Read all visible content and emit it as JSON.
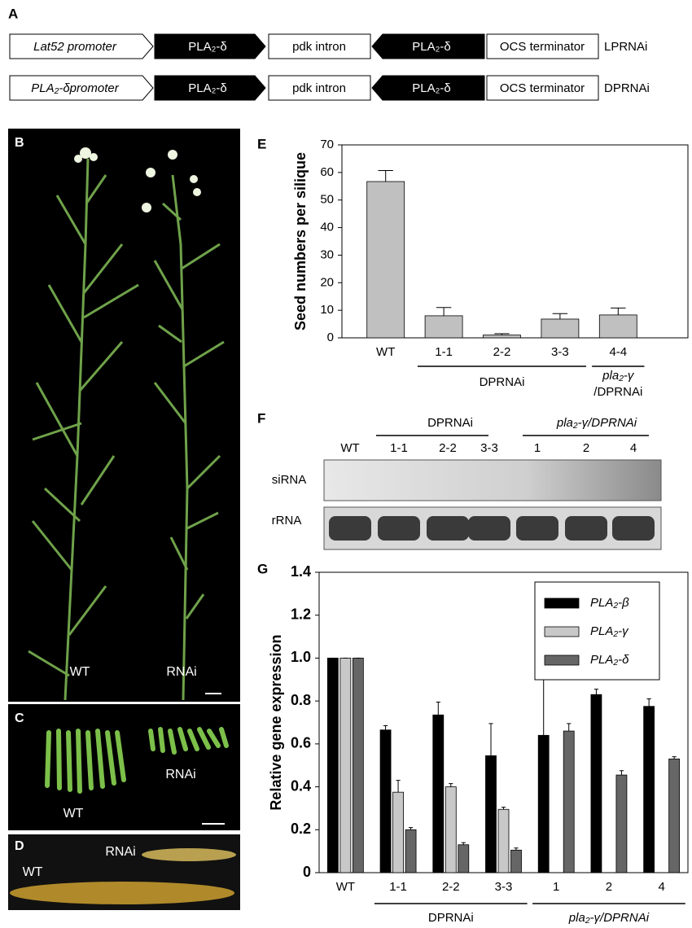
{
  "panels": {
    "A": {
      "label": "A",
      "rows": [
        [
          "Lat52 promoter",
          "PLA₂-δ",
          "pdk intron",
          "PLA₂-δ",
          "OCS  terminator",
          "LPRNAi"
        ],
        [
          "PLA₂-δpromoter",
          "PLA₂-δ",
          "pdk intron",
          "PLA₂-δ",
          "OCS  terminator",
          "DPRNAi"
        ]
      ]
    },
    "B": {
      "label": "B",
      "texts": [
        "WT",
        "RNAi"
      ]
    },
    "C": {
      "label": "C",
      "texts": [
        "WT",
        "RNAi"
      ]
    },
    "D": {
      "label": "D",
      "texts": [
        "WT",
        "RNAi"
      ]
    },
    "F": {
      "label": "F",
      "groups": [
        "DPRNAi",
        "pla₂-γ/DPRNAi"
      ],
      "lanes": [
        "WT",
        "1-1",
        "2-2",
        "3-3",
        "1",
        "2",
        "4"
      ],
      "rows": [
        "siRNA",
        "rRNA"
      ]
    }
  },
  "chart_data": [
    {
      "type": "bar",
      "panel_label": "E",
      "y_label": "Seed numbers per silique",
      "categories": [
        "WT",
        "1-1",
        "2-2",
        "3-3",
        "4-4"
      ],
      "values": [
        56.7,
        8,
        1,
        6.8,
        8.3
      ],
      "errors": [
        4,
        3,
        0.5,
        2,
        2.5
      ],
      "color": "#c0c0c0",
      "ylim": [
        0,
        70
      ],
      "yticks": [
        0,
        10,
        20,
        30,
        40,
        50,
        60,
        70
      ],
      "groups": [
        "DPRNAi",
        "pla₂-γ",
        "/DPRNAi"
      ]
    },
    {
      "type": "grouped_bar",
      "panel_label": "G",
      "y_label": "Relative gene expression",
      "categories": [
        "WT",
        "1-1",
        "2-2",
        "3-3",
        "1",
        "2",
        "4"
      ],
      "series": [
        {
          "name": "PLA₂-β",
          "color": "#000000",
          "values": [
            1,
            0.665,
            0.735,
            0.545,
            0.64,
            0.83,
            0.775
          ],
          "errors": [
            0,
            0.02,
            0.06,
            0.15,
            0.34,
            0.025,
            0.035
          ]
        },
        {
          "name": "PLA₂-γ",
          "color": "#c8c8c8",
          "values": [
            1,
            0.375,
            0.4,
            0.295,
            null,
            null,
            null
          ],
          "errors": [
            0,
            0.055,
            0.015,
            0.01,
            null,
            null,
            null
          ]
        },
        {
          "name": "PLA₂-δ",
          "color": "#666666",
          "values": [
            1,
            0.2,
            0.13,
            0.105,
            0.66,
            0.455,
            0.53
          ],
          "errors": [
            0,
            0.01,
            0.01,
            0.01,
            0.035,
            0.02,
            0.01
          ]
        }
      ],
      "ylim": [
        0,
        1.4
      ],
      "yticks": [
        0,
        0.2,
        0.4,
        0.6,
        0.8,
        {
          "value": 1,
          "label": "1.0"
        },
        1.2,
        1.4
      ],
      "legend": "upper right",
      "groups": [
        "DPRNAi",
        "pla₂-γ/DPRNAi"
      ]
    }
  ]
}
